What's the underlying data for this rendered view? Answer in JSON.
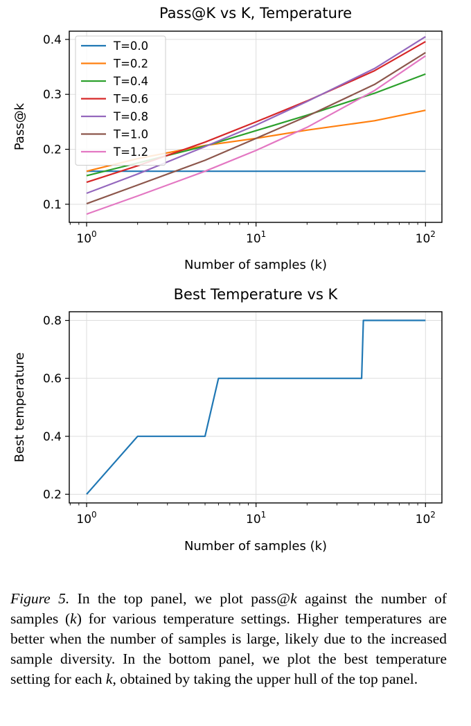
{
  "chart_data": [
    {
      "type": "line",
      "title": "Pass@K vs K, Temperature",
      "xlabel": "Number of samples (k)",
      "ylabel": "Pass@k",
      "xscale": "log",
      "xlim": [
        0.79,
        125
      ],
      "ylim": [
        0.067,
        0.415
      ],
      "xticks": [
        1,
        10,
        100
      ],
      "xtick_labels": [
        [
          "10",
          "0"
        ],
        [
          "10",
          "1"
        ],
        [
          "10",
          "2"
        ]
      ],
      "yticks": [
        0.1,
        0.2,
        0.3,
        0.4
      ],
      "ytick_labels": [
        "0.1",
        "0.2",
        "0.3",
        "0.4"
      ],
      "grid": true,
      "legend_position": "top-left",
      "x": [
        1,
        100
      ],
      "series": [
        {
          "name": "T=0.0",
          "color": "#1f77b4",
          "values": [
            0.16,
            0.16
          ]
        },
        {
          "name": "T=0.2",
          "color": "#ff7f0e",
          "points": [
            [
              1,
              0.16
            ],
            [
              2,
              0.183
            ],
            [
              5,
              0.207
            ],
            [
              10,
              0.22
            ],
            [
              20,
              0.235
            ],
            [
              50,
              0.252
            ],
            [
              100,
              0.271
            ]
          ]
        },
        {
          "name": "T=0.4",
          "color": "#2ca02c",
          "points": [
            [
              1,
              0.152
            ],
            [
              2,
              0.175
            ],
            [
              5,
              0.206
            ],
            [
              10,
              0.234
            ],
            [
              20,
              0.262
            ],
            [
              50,
              0.302
            ],
            [
              100,
              0.337
            ]
          ]
        },
        {
          "name": "T=0.6",
          "color": "#d62728",
          "points": [
            [
              1,
              0.14
            ],
            [
              2,
              0.17
            ],
            [
              5,
              0.213
            ],
            [
              10,
              0.25
            ],
            [
              20,
              0.288
            ],
            [
              50,
              0.343
            ],
            [
              100,
              0.396
            ]
          ]
        },
        {
          "name": "T=0.8",
          "color": "#9467bd",
          "points": [
            [
              1,
              0.12
            ],
            [
              2,
              0.155
            ],
            [
              5,
              0.205
            ],
            [
              10,
              0.244
            ],
            [
              20,
              0.287
            ],
            [
              50,
              0.347
            ],
            [
              100,
              0.405
            ]
          ]
        },
        {
          "name": "T=1.0",
          "color": "#8c564b",
          "points": [
            [
              1,
              0.101
            ],
            [
              2,
              0.135
            ],
            [
              5,
              0.18
            ],
            [
              10,
              0.22
            ],
            [
              20,
              0.26
            ],
            [
              50,
              0.318
            ],
            [
              100,
              0.376
            ]
          ]
        },
        {
          "name": "T=1.2",
          "color": "#e377c2",
          "points": [
            [
              1,
              0.082
            ],
            [
              2,
              0.115
            ],
            [
              5,
              0.16
            ],
            [
              10,
              0.198
            ],
            [
              20,
              0.24
            ],
            [
              50,
              0.307
            ],
            [
              100,
              0.37
            ]
          ]
        }
      ]
    },
    {
      "type": "line",
      "title": "Best Temperature vs K",
      "xlabel": "Number of samples (k)",
      "ylabel": "Best temperature",
      "xscale": "log",
      "xlim": [
        0.79,
        125
      ],
      "ylim": [
        0.17,
        0.83
      ],
      "xticks": [
        1,
        10,
        100
      ],
      "xtick_labels": [
        [
          "10",
          "0"
        ],
        [
          "10",
          "1"
        ],
        [
          "10",
          "2"
        ]
      ],
      "yticks": [
        0.2,
        0.4,
        0.6,
        0.8
      ],
      "ytick_labels": [
        "0.2",
        "0.4",
        "0.6",
        "0.8"
      ],
      "grid": true,
      "series": [
        {
          "name": "",
          "color": "#1f77b4",
          "points": [
            [
              1,
              0.2
            ],
            [
              2,
              0.4
            ],
            [
              5,
              0.4
            ],
            [
              6,
              0.6
            ],
            [
              42,
              0.6
            ],
            [
              43,
              0.8
            ],
            [
              100,
              0.8
            ]
          ]
        }
      ]
    }
  ],
  "caption": {
    "label": "Figure 5.",
    "text_1": " In the top panel, we plot pass@",
    "k_1": "k",
    "text_2": " against the number of samples (",
    "k_2": "k",
    "text_3": ") for various temperature settings. Higher temperatures are better when the number of samples is large, likely due to the increased sample diversity. In the bottom panel, we plot the best temperature setting for each ",
    "k_3": "k",
    "text_4": ", obtained by taking the upper hull of the top panel."
  }
}
